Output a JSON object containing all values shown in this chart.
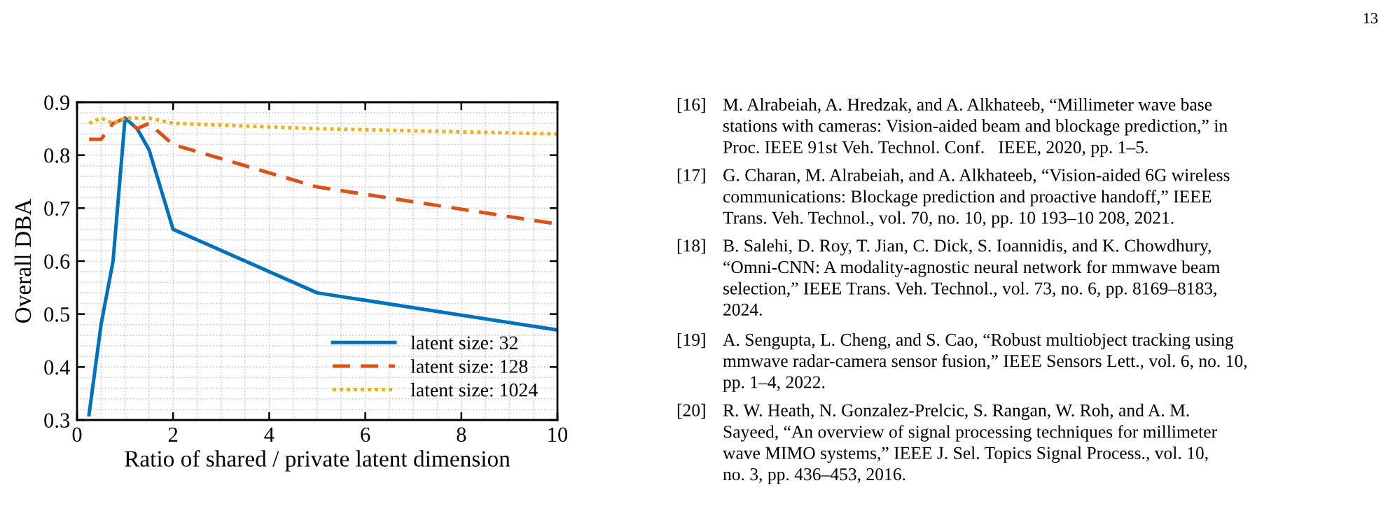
{
  "chart_data": {
    "type": "line",
    "xlabel": "Ratio of shared / private latent dimension",
    "ylabel": "Overall DBA",
    "xlim": [
      0,
      10
    ],
    "xticks": [
      0,
      2,
      4,
      6,
      8,
      10
    ],
    "ylim": [
      0.3,
      0.9
    ],
    "yticks": [
      0.3,
      0.4,
      0.5,
      0.6,
      0.7,
      0.8,
      0.9
    ],
    "grid": true,
    "legend": "bottom right",
    "x": [
      0.25,
      0.5,
      0.75,
      1,
      1.25,
      1.5,
      2,
      5,
      10
    ],
    "series": [
      {
        "name": "latent size: 32",
        "color": "#0072bd",
        "line_style": "solid",
        "values": [
          0.31,
          0.48,
          0.6,
          0.87,
          0.85,
          0.81,
          0.66,
          0.54,
          0.47
        ]
      },
      {
        "name": "latent size: 128",
        "color": "#d95319",
        "line_style": "dashed",
        "values": [
          0.83,
          0.83,
          0.86,
          0.87,
          0.85,
          0.86,
          0.82,
          0.74,
          0.67
        ]
      },
      {
        "name": "latent size: 1024",
        "color": "#edb120",
        "line_style": "dotted",
        "values": [
          0.86,
          0.87,
          0.86,
          0.87,
          0.87,
          0.87,
          0.86,
          0.85,
          0.84
        ]
      }
    ],
    "annotations": [
      "13",
      "[16] M. Alrabeiah, A. Hredzak, and A. Alkhateeb, “Millimeter wave base\nstations with cameras: Vision-aided beam and blockage prediction,” in\nProc. IEEE 91st Veh. Technol. Conf.   IEEE, 2020, pp. 1–5.",
      "[17] G. Charan, M. Alrabeiah, and A. Alkhateeb, “Vision-aided 6G wireless\ncommunications: Blockage prediction and proactive handoff,” IEEE\nTrans. Veh. Technol., vol. 70, no. 10, pp. 10 193–10 208, 2021.",
      "[18] B. Salehi, D. Roy, T. Jian, C. Dick, S. Ioannidis, and K. Chowdhury,\n“Omni-CNN: A modality-agnostic neural network for mmwave beam\nselection,” IEEE Trans. Veh. Technol., vol. 73, no. 6, pp. 8169–8183,\n2024.",
      "[19] A. Sengupta, L. Cheng, and S. Cao, “Robust multiobject tracking using\nmmwave radar-camera sensor fusion,” IEEE Sensors Lett., vol. 6, no. 10,\npp. 1–4, 2022.",
      "[20] R. W. Heath, N. Gonzalez-Prelcic, S. Rangan, W. Roh, and A. M.\nSayeed, “An overview of signal processing techniques for millimeter\nwave MIMO systems,” IEEE J. Sel. Topics Signal Process., vol. 10,\nno. 3, pp. 436–453, 2016."
    ]
  }
}
